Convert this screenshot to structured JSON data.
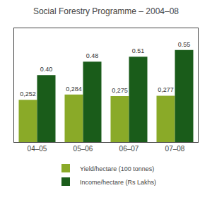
{
  "chart_data": {
    "type": "bar",
    "title": "Social Forestry Programme – 2004–08",
    "categories": [
      "04–05",
      "05–06",
      "06–07",
      "07–08"
    ],
    "series": [
      {
        "name": "Yield/hectare (100 tonnes)",
        "color": "#8aaa28",
        "values": [
          0.252,
          0.284,
          0.275,
          0.277
        ],
        "value_labels": [
          "0,252",
          "0,284",
          "0,275",
          "0,277"
        ]
      },
      {
        "name": "Income/hectare (Rs Lakhs)",
        "color": "#1a5c1a",
        "values": [
          0.4,
          0.48,
          0.51,
          0.55
        ],
        "value_labels": [
          "0.40",
          "0.48",
          "0.51",
          "0.55"
        ]
      }
    ],
    "ylim": [
      0,
      0.68
    ],
    "yticks": [],
    "tick_labels": "x",
    "data_labels": true,
    "grid": false,
    "legend": "bottom"
  }
}
